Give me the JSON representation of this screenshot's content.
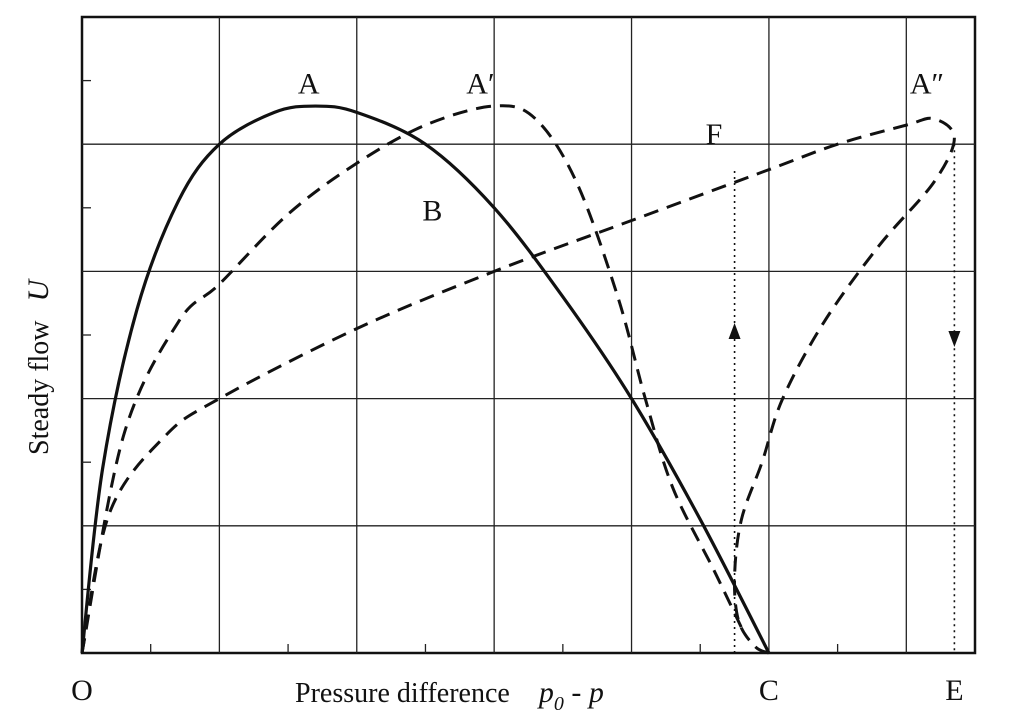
{
  "chart_data": {
    "type": "line",
    "title": "",
    "xlabel": "Pressure difference",
    "xlabel_symbol": {
      "main": "p",
      "subscript": "0",
      "rest": " - p"
    },
    "ylabel": "Steady flow",
    "ylabel_symbol": "U",
    "xlim": [
      0,
      6.5
    ],
    "ylim": [
      0,
      5
    ],
    "grid": true,
    "x_tick_labels": [
      {
        "x": 0,
        "text": "O"
      },
      {
        "x": 5,
        "text": "C"
      },
      {
        "x": 6.35,
        "text": "E"
      }
    ],
    "series": [
      {
        "style": "solid",
        "points": [
          [
            0,
            0
          ],
          [
            0.15,
            1.45
          ],
          [
            0.4,
            2.7
          ],
          [
            0.7,
            3.55
          ],
          [
            1,
            4
          ],
          [
            1.4,
            4.25
          ],
          [
            1.7,
            4.3
          ],
          [
            2,
            4.25
          ],
          [
            2.5,
            4
          ],
          [
            3,
            3.5
          ],
          [
            3.5,
            2.8
          ],
          [
            4,
            2
          ],
          [
            4.5,
            1.05
          ],
          [
            5,
            0
          ]
        ]
      },
      {
        "style": "dashed",
        "points": [
          [
            0,
            0
          ],
          [
            0.3,
            1.7
          ],
          [
            0.7,
            2.6
          ],
          [
            1,
            2.9
          ],
          [
            1.5,
            3.45
          ],
          [
            2,
            3.85
          ],
          [
            2.5,
            4.15
          ],
          [
            3,
            4.3
          ],
          [
            3.3,
            4.2
          ],
          [
            3.6,
            3.7
          ],
          [
            3.9,
            2.8
          ],
          [
            4.1,
            2
          ],
          [
            4.3,
            1.3
          ],
          [
            4.6,
            0.65
          ],
          [
            4.8,
            0.2
          ]
        ]
      },
      {
        "style": "dashed",
        "points": [
          [
            0,
            0
          ],
          [
            0.2,
            1.1
          ],
          [
            0.6,
            1.7
          ],
          [
            1,
            2
          ],
          [
            2,
            2.55
          ],
          [
            3,
            3
          ],
          [
            4,
            3.4
          ],
          [
            5,
            3.8
          ],
          [
            5.5,
            4
          ],
          [
            6,
            4.15
          ],
          [
            6.2,
            4.2
          ],
          [
            6.35,
            4.05
          ],
          [
            6.2,
            3.7
          ],
          [
            5.8,
            3.2
          ],
          [
            5.4,
            2.6
          ],
          [
            5.1,
            2
          ],
          [
            4.95,
            1.5
          ],
          [
            4.8,
            1.05
          ],
          [
            4.75,
            0.6
          ],
          [
            4.78,
            0.25
          ],
          [
            4.9,
            0.05
          ],
          [
            5,
            0
          ]
        ]
      },
      {
        "style": "dotted",
        "points": [
          [
            4.75,
            0
          ],
          [
            4.75,
            3.8
          ]
        ],
        "arrow": "up"
      },
      {
        "style": "dotted",
        "points": [
          [
            6.35,
            4
          ],
          [
            6.35,
            0
          ]
        ],
        "arrow": "down"
      }
    ],
    "annotations": [
      {
        "text": "A",
        "x": 1.65,
        "y": 4.4
      },
      {
        "text": "A′",
        "x": 2.9,
        "y": 4.4
      },
      {
        "text": "A″",
        "x": 6.15,
        "y": 4.4
      },
      {
        "text": "B",
        "x": 2.55,
        "y": 3.4
      },
      {
        "text": "F",
        "x": 4.6,
        "y": 4.0
      }
    ]
  }
}
